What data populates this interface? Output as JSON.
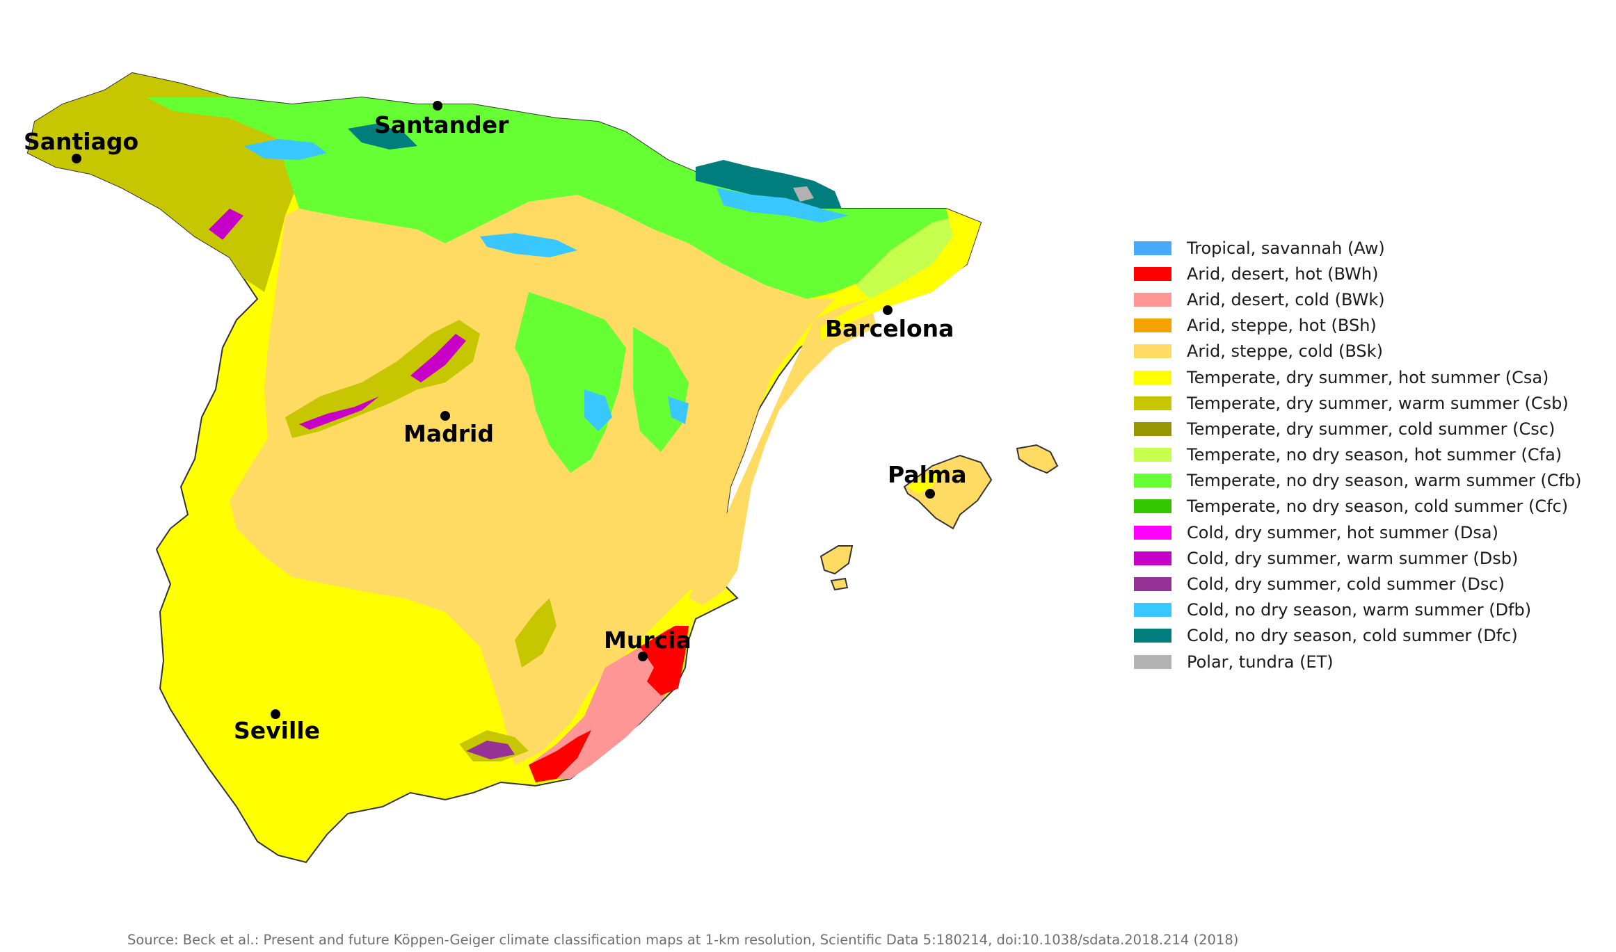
{
  "cities": [
    {
      "name": "Santiago"
    },
    {
      "name": "Santander"
    },
    {
      "name": "Barcelona"
    },
    {
      "name": "Madrid"
    },
    {
      "name": "Palma"
    },
    {
      "name": "Murcia"
    },
    {
      "name": "Seville"
    }
  ],
  "legend": [
    {
      "label": "Tropical, savannah (Aw)",
      "color": "#46a9fa"
    },
    {
      "label": "Arid, desert, hot (BWh)",
      "color": "#fe0000"
    },
    {
      "label": "Arid, desert, cold (BWk)",
      "color": "#fe9695"
    },
    {
      "label": "Arid, steppe, hot (BSh)",
      "color": "#f5a301"
    },
    {
      "label": "Arid, steppe, cold (BSk)",
      "color": "#ffdb63"
    },
    {
      "label": "Temperate, dry summer, hot summer (Csa)",
      "color": "#ffff00"
    },
    {
      "label": "Temperate, dry summer, warm summer (Csb)",
      "color": "#c6c700"
    },
    {
      "label": "Temperate, dry summer, cold summer (Csc)",
      "color": "#969600"
    },
    {
      "label": "Temperate, no dry season, hot summer (Cfa)",
      "color": "#c6ff4e"
    },
    {
      "label": "Temperate, no dry season, warm summer (Cfb)",
      "color": "#66ff33"
    },
    {
      "label": "Temperate, no dry season, cold summer (Cfc)",
      "color": "#33c701"
    },
    {
      "label": "Cold, dry summer, hot summer (Dsa)",
      "color": "#ff00fe"
    },
    {
      "label": "Cold, dry summer, warm summer (Dsb)",
      "color": "#c600c7"
    },
    {
      "label": "Cold, dry summer, cold summer (Dsc)",
      "color": "#963295"
    },
    {
      "label": "Cold, no dry season, warm summer (Dfb)",
      "color": "#38c7ff"
    },
    {
      "label": "Cold, no dry season, cold summer (Dfc)",
      "color": "#007e7d"
    },
    {
      "label": "Polar, tundra (ET)",
      "color": "#b2b2b2"
    }
  ],
  "source": "Source: Beck et al.: Present and future Köppen-Geiger climate classification maps at 1-km resolution, Scientific Data 5:180214, doi:10.1038/sdata.2018.214 (2018)"
}
